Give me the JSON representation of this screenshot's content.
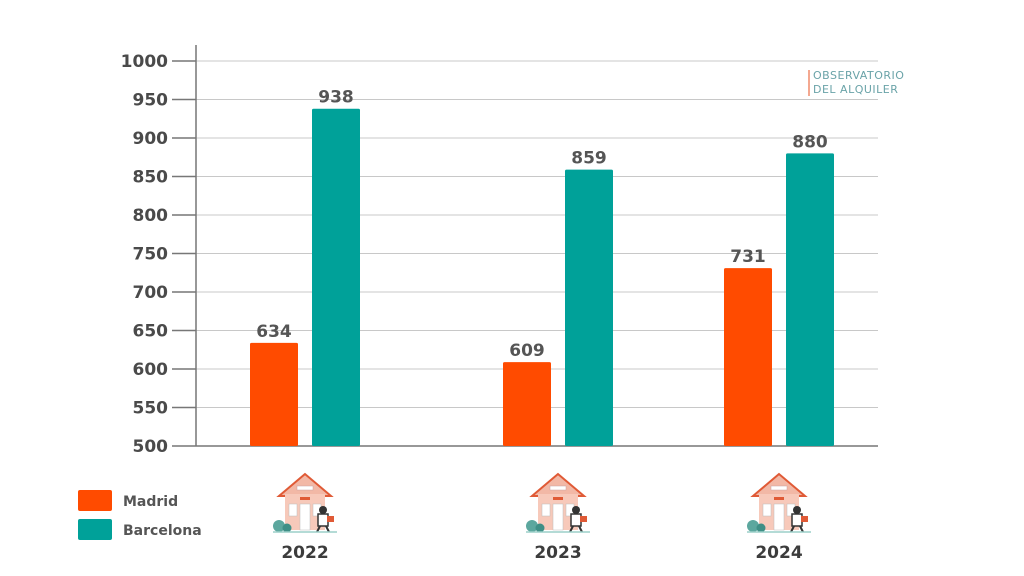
{
  "chart_data": {
    "type": "bar",
    "categories": [
      "2022",
      "2023",
      "2024"
    ],
    "series": [
      {
        "name": "Madrid",
        "values": [
          634,
          609,
          731
        ],
        "color": "#ff4b00"
      },
      {
        "name": "Barcelona",
        "values": [
          938,
          859,
          880
        ],
        "color": "#00a199"
      }
    ],
    "ylim": [
      500,
      1000
    ],
    "yticks": [
      500,
      550,
      600,
      650,
      700,
      750,
      800,
      850,
      900,
      950,
      1000
    ],
    "grid": true,
    "legend_position": "bottom-left",
    "category_icon": "house-with-burglar-icon"
  },
  "watermark": {
    "line1": "OBSERVATORIO",
    "line2": "DEL ALQUILER"
  }
}
